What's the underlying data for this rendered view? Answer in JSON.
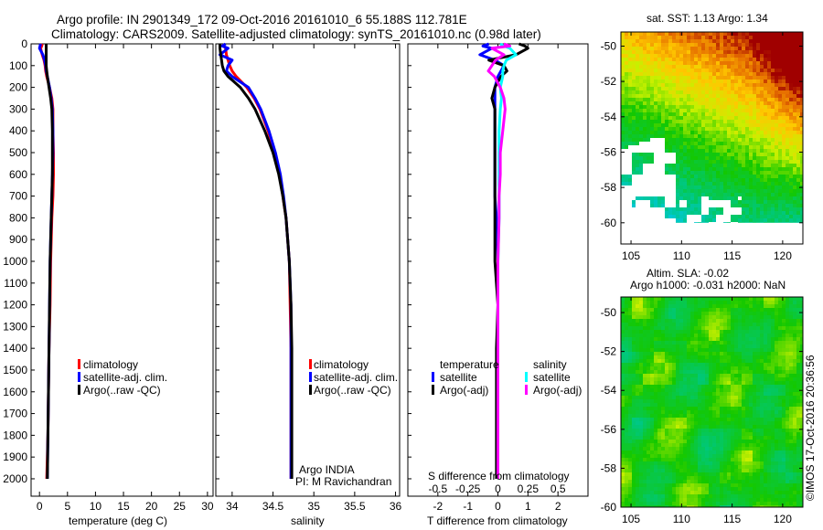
{
  "title": {
    "line1": "Argo profile: IN 2901349_172 09-Oct-2016 20161010_6 55.188S 112.781E",
    "line2": "Climatology: CARS2009. Satellite-adjusted climatology: synTS_20161010.nc (0.98d later)"
  },
  "footer_stamp": "©IMOS 17-Oct-2016 20:36:56",
  "colors": {
    "climatology": "#ff0000",
    "satellite": "#0000ff",
    "argo": "#000000",
    "sal_satellite": "#00ffff",
    "sal_argo": "#ff00ff"
  },
  "chart_data": [
    {
      "type": "line",
      "id": "temperature",
      "xlabel": "temperature (deg C)",
      "xlim": [
        -1.5,
        31
      ],
      "xticks": [
        0,
        5,
        10,
        15,
        20,
        25,
        30
      ],
      "ylim": [
        2080,
        0
      ],
      "yticks": [
        0,
        100,
        200,
        300,
        400,
        500,
        600,
        700,
        800,
        900,
        1000,
        1100,
        1200,
        1300,
        1400,
        1500,
        1600,
        1700,
        1800,
        1900,
        2000
      ],
      "depth": [
        0,
        10,
        20,
        50,
        75,
        100,
        125,
        150,
        200,
        250,
        300,
        400,
        500,
        600,
        700,
        800,
        1000,
        1200,
        1400,
        1600,
        1800,
        2000
      ],
      "legend": [
        "climatology",
        "satellite-adj. clim.",
        "Argo(..raw -QC)"
      ],
      "series": [
        {
          "name": "climatology",
          "color": "#ff0000",
          "values": [
            0.5,
            0.4,
            0.2,
            0.5,
            0.8,
            1.0,
            1.1,
            1.3,
            1.8,
            2.2,
            2.4,
            2.4,
            2.5,
            2.5,
            2.4,
            2.2,
            2.0,
            1.9,
            1.7,
            1.6,
            1.5,
            1.3
          ]
        },
        {
          "name": "satellite-adj. clim.",
          "color": "#0000ff",
          "values": [
            0.2,
            0.1,
            0.0,
            0.6,
            0.9,
            1.1,
            1.2,
            1.4,
            1.8,
            2.1,
            2.3,
            2.4,
            2.4,
            2.3,
            2.2,
            2.1,
            1.9,
            1.8,
            1.7,
            1.6,
            1.5,
            1.4
          ]
        },
        {
          "name": "Argo(..raw -QC)",
          "color": "#000000",
          "values": [
            1.2,
            1.2,
            1.2,
            1.2,
            1.2,
            1.2,
            1.3,
            1.4,
            1.7,
            2.0,
            2.2,
            2.3,
            2.3,
            2.3,
            2.2,
            2.1,
            1.9,
            1.8,
            1.7,
            1.6,
            1.5,
            1.4
          ]
        }
      ]
    },
    {
      "type": "line",
      "id": "salinity",
      "xlabel": "salinity",
      "xlim": [
        33.8,
        36.05
      ],
      "xticks": [
        34,
        34.5,
        35,
        35.5,
        36
      ],
      "ylim": [
        2080,
        0
      ],
      "depth": [
        0,
        10,
        20,
        50,
        75,
        100,
        125,
        150,
        200,
        250,
        300,
        400,
        500,
        600,
        700,
        800,
        1000,
        1200,
        1400,
        1600,
        1800,
        2000
      ],
      "legend": [
        "climatology",
        "satellite-adj. clim.",
        "Argo(..raw -QC)"
      ],
      "annotation": [
        "Argo INDIA",
        "PI: M Ravichandran"
      ],
      "series": [
        {
          "name": "climatology",
          "color": "#ff0000",
          "values": [
            33.9,
            33.9,
            33.92,
            33.93,
            33.95,
            33.97,
            34.0,
            34.05,
            34.18,
            34.27,
            34.34,
            34.44,
            34.52,
            34.58,
            34.62,
            34.66,
            34.7,
            34.71,
            34.72,
            34.72,
            34.72,
            34.72
          ]
        },
        {
          "name": "satellite-adj. clim.",
          "color": "#0000ff",
          "values": [
            33.92,
            33.88,
            33.95,
            33.85,
            34.0,
            33.95,
            33.93,
            34.0,
            34.2,
            34.28,
            34.35,
            34.45,
            34.53,
            34.59,
            34.63,
            34.66,
            34.7,
            34.72,
            34.72,
            34.72,
            34.72,
            34.72
          ]
        },
        {
          "name": "Argo(..raw -QC)",
          "color": "#000000",
          "values": [
            33.85,
            33.85,
            33.85,
            33.86,
            33.87,
            33.88,
            33.9,
            33.95,
            34.1,
            34.2,
            34.28,
            34.4,
            34.5,
            34.57,
            34.62,
            34.66,
            34.7,
            34.72,
            34.73,
            34.73,
            34.73,
            34.73
          ]
        }
      ]
    },
    {
      "type": "line",
      "id": "difference",
      "xlabel": "T difference from climatology",
      "x2label": "S difference from climatology",
      "xlim": [
        -3,
        3
      ],
      "xticks": [
        -2,
        -1,
        0,
        1,
        2
      ],
      "x2lim": [
        -0.75,
        0.75
      ],
      "x2ticks": [
        -0.5,
        -0.25,
        0,
        0.25,
        0.5
      ],
      "x2ticklabels": [
        "-0.5",
        "-0.25",
        "0",
        "0.25",
        "0.5"
      ],
      "ylim": [
        2080,
        0
      ],
      "depth": [
        0,
        10,
        20,
        50,
        75,
        100,
        125,
        150,
        200,
        250,
        300,
        400,
        500,
        600,
        700,
        800,
        1000,
        1200,
        1400,
        1600,
        1800,
        2000
      ],
      "legend": {
        "temperature_heading": "temperature",
        "salinity_heading": "salinity",
        "items": [
          "satellite",
          "Argo(-adj)",
          "satellite",
          "Argo(-adj)"
        ]
      },
      "series": [
        {
          "name": "temperature satellite",
          "axis": "T",
          "color": "#0000ff",
          "values": [
            -0.3,
            -0.5,
            -0.2,
            -0.6,
            -0.1,
            0.2,
            0.1,
            0.0,
            -0.1,
            -0.1,
            -0.1,
            -0.1,
            -0.1,
            -0.1,
            -0.1,
            -0.05,
            0.0,
            0.0,
            0.0,
            0.0,
            0.0,
            0.0
          ]
        },
        {
          "name": "temperature Argo(-adj)",
          "axis": "T",
          "color": "#000000",
          "values": [
            0.7,
            0.9,
            1.0,
            0.6,
            -0.3,
            0.2,
            0.3,
            0.1,
            -0.1,
            -0.2,
            -0.1,
            -0.1,
            -0.1,
            -0.1,
            -0.1,
            -0.1,
            -0.1,
            0.0,
            -0.05,
            -0.05,
            -0.05,
            -0.05
          ]
        },
        {
          "name": "salinity satellite",
          "axis": "S",
          "color": "#00ffff",
          "values": [
            0.02,
            0.05,
            0.1,
            0.15,
            0.07,
            0.05,
            0.04,
            0.04,
            0.02,
            0.03,
            0.02,
            0.01,
            0.01,
            0.01,
            0.01,
            0.01,
            0.0,
            0.0,
            0.0,
            0.0,
            0.0,
            0.0
          ]
        },
        {
          "name": "salinity Argo(-adj)",
          "axis": "S",
          "color": "#ff00ff",
          "values": [
            0.05,
            0.1,
            -0.05,
            0.05,
            -0.02,
            -0.05,
            -0.08,
            -0.03,
            0.02,
            0.05,
            0.06,
            0.04,
            0.02,
            0.02,
            0.01,
            0.01,
            0.0,
            0.0,
            0.0,
            0.0,
            0.0,
            0.0
          ]
        }
      ]
    },
    {
      "type": "heatmap",
      "id": "sst-map",
      "title": "sat. SST: 1.13 Argo: 1.34",
      "xlim": [
        104,
        122
      ],
      "ylim": [
        -61.2,
        -49.2
      ],
      "xticks": [
        105,
        110,
        115,
        120
      ],
      "yticks": [
        -50,
        -52,
        -54,
        -56,
        -58,
        -60
      ]
    },
    {
      "type": "heatmap",
      "id": "sla-map",
      "title": [
        "Altim. SLA: -0.02",
        "Argo h1000: -0.031 h2000: NaN"
      ],
      "xlim": [
        104,
        122
      ],
      "ylim": [
        -60,
        -49.2
      ],
      "xticks": [
        105,
        110,
        115,
        120
      ],
      "yticks": [
        -50,
        -52,
        -54,
        -56,
        -58,
        -60
      ]
    }
  ]
}
